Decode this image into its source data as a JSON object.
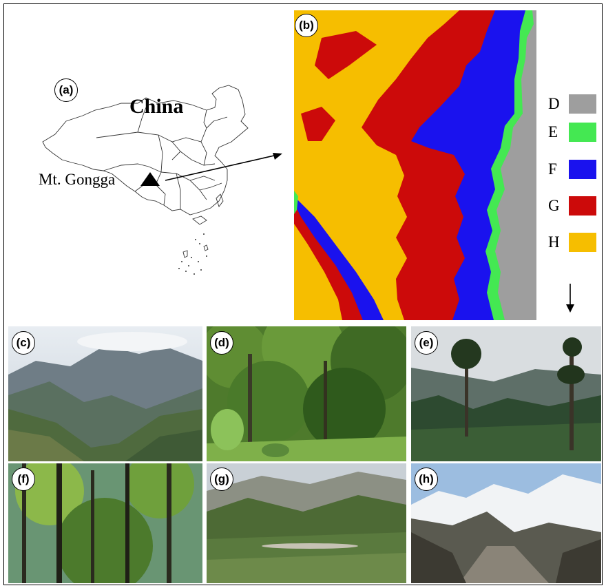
{
  "panels": {
    "a": "(a)",
    "b": "(b)",
    "c": "(c)",
    "d": "(d)",
    "e": "(e)",
    "f": "(f)",
    "g": "(g)",
    "h": "(h)"
  },
  "map": {
    "country_label": "China",
    "site_label": "Mt. Gongga"
  },
  "legend": [
    {
      "letter": "D",
      "color": "#9e9e9e"
    },
    {
      "letter": "E",
      "color": "#44e852"
    },
    {
      "letter": "F",
      "color": "#1a12ee"
    },
    {
      "letter": "G",
      "color": "#cc0a0a"
    },
    {
      "letter": "H",
      "color": "#f6be00"
    }
  ]
}
